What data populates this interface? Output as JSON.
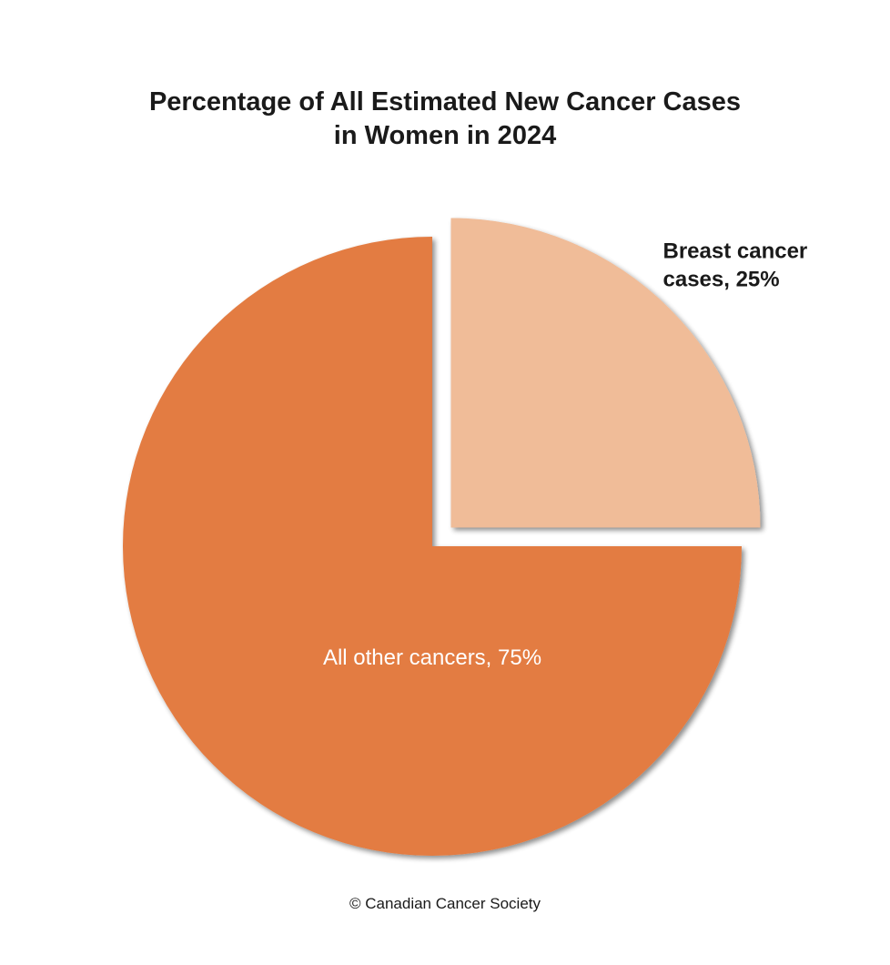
{
  "chart_data": {
    "type": "pie",
    "title": [
      "Percentage of All Estimated New Cancer Cases",
      "in Women in 2024"
    ],
    "slices": [
      {
        "label_lines": [
          "Breast cancer",
          "cases, 25%"
        ],
        "value": 25,
        "color": "#f0bc98",
        "exploded": true,
        "label_color": "#1a1a1a"
      },
      {
        "label_lines": [
          "All other cancers, 75%"
        ],
        "value": 75,
        "color": "#e37c42",
        "exploded": false,
        "label_color": "#ffffff"
      }
    ],
    "legend": "none"
  },
  "credit": "© Canadian Cancer Society"
}
